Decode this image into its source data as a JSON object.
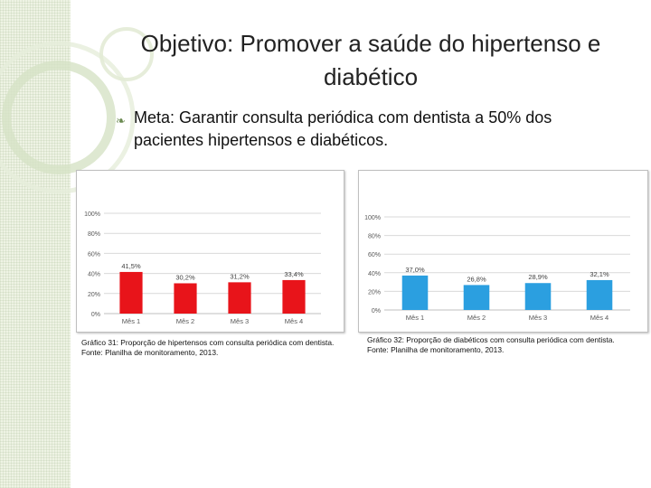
{
  "slide": {
    "title_prefix": "Objetivo: ",
    "title_main": "Promover a saúde do hipertenso e diabético",
    "bullet_text": "Meta: Garantir consulta periódica com dentista a 50% dos pacientes hipertensos e diabéticos.",
    "bullet_icon": "fleuron-bullet-icon"
  },
  "colors": {
    "bar_red": "#e8141a",
    "bar_blue": "#2b9fe0",
    "grid": "#d9d9d9",
    "axis_text": "#595959",
    "accent_green": "#8aa86a"
  },
  "chart_data": [
    {
      "type": "bar",
      "categories": [
        "Mês 1",
        "Mês 2",
        "Mês 3",
        "Mês 4"
      ],
      "values": [
        41.5,
        30.2,
        31.2,
        33.4
      ],
      "value_labels": [
        "41,5%",
        "30,2%",
        "31,2%",
        "33,4%"
      ],
      "ylim": [
        0,
        100
      ],
      "yticks": [
        "0%",
        "20%",
        "40%",
        "60%",
        "80%",
        "100%"
      ],
      "title": "",
      "xlabel": "",
      "ylabel": "",
      "grid": true,
      "color_key": "bar_red",
      "caption": [
        "Gráfico 31: Proporção de hipertensos com consulta periódica com dentista.",
        "Fonte: Planilha de monitoramento, 2013."
      ]
    },
    {
      "type": "bar",
      "categories": [
        "Mês 1",
        "Mês 2",
        "Mês 3",
        "Mês 4"
      ],
      "values": [
        37.0,
        26.8,
        28.9,
        32.1
      ],
      "value_labels": [
        "37,0%",
        "26,8%",
        "28,9%",
        "32,1%"
      ],
      "ylim": [
        0,
        100
      ],
      "yticks": [
        "0%",
        "20%",
        "40%",
        "60%",
        "80%",
        "100%"
      ],
      "title": "",
      "xlabel": "",
      "ylabel": "",
      "grid": true,
      "color_key": "bar_blue",
      "caption": [
        "Gráfico 32: Proporção de diabéticos com consulta periódica com dentista.",
        "Fonte: Planilha de monitoramento, 2013."
      ]
    }
  ]
}
